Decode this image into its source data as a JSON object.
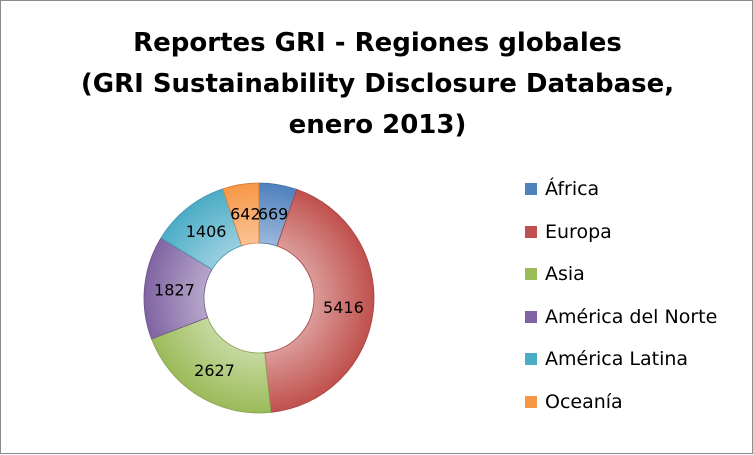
{
  "chart_data": {
    "type": "pie",
    "variant": "donut",
    "title_lines": [
      "Reportes GRI - Regiones globales",
      "(GRI Sustainability Disclosure Database,",
      "enero 2013)"
    ],
    "slices": [
      {
        "label": "África",
        "value": 669,
        "color": "#4f81bd"
      },
      {
        "label": "Europa",
        "value": 5416,
        "color": "#c0504d"
      },
      {
        "label": "Asia",
        "value": 2627,
        "color": "#9bbb59"
      },
      {
        "label": "América del Norte",
        "value": 1827,
        "color": "#8064a2"
      },
      {
        "label": "América Latina",
        "value": 1406,
        "color": "#4bacc6"
      },
      {
        "label": "Oceanía",
        "value": 642,
        "color": "#f79646"
      }
    ],
    "legend_position": "right"
  }
}
